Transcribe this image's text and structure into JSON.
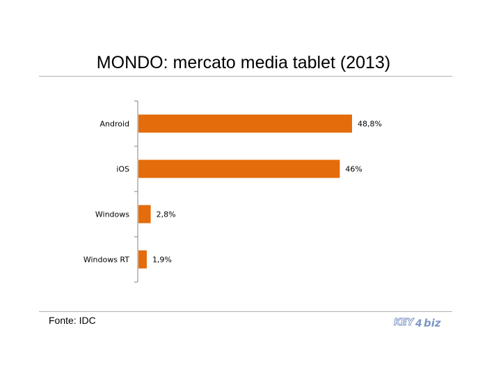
{
  "title": "MONDO: mercato media tablet (2013)",
  "source": "Fonte: IDC",
  "logo": {
    "text_key": "KEY",
    "text_num": "4",
    "text_biz": "biz"
  },
  "colors": {
    "bar": "#E46C0A",
    "axis": "#808080",
    "rule": "#b0b0b0",
    "logo_blue": "#7f97c5"
  },
  "chart_data": {
    "type": "bar",
    "orientation": "horizontal",
    "categories": [
      "Android",
      "iOS",
      "Windows",
      "Windows RT"
    ],
    "values": [
      48.8,
      46,
      2.8,
      1.9
    ],
    "data_labels": [
      "48,8%",
      "46%",
      "2,8%",
      "1,9%"
    ],
    "xlim": [
      0,
      55
    ],
    "grid": false,
    "legend": "none"
  }
}
